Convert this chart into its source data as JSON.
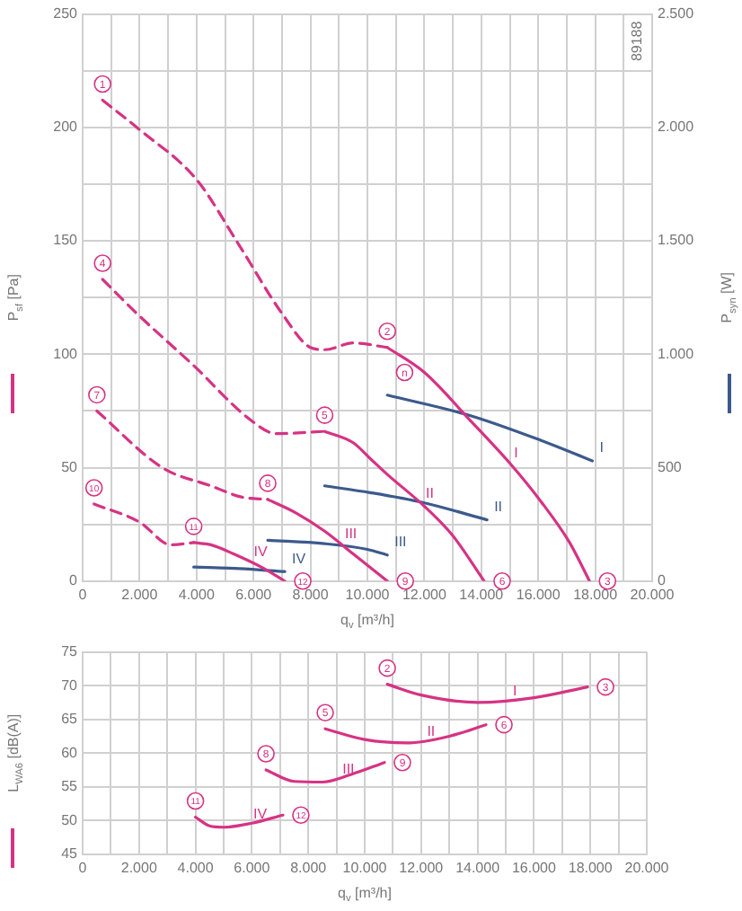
{
  "chart_data": [
    {
      "type": "line",
      "xlabel": "q$_{v}$ [m³/h]",
      "ylabel": "P$_{sf}$ [Pa]",
      "y2label": "P$_{syn}$ [W]",
      "xlim": [
        0,
        20000
      ],
      "ylim": [
        0,
        250
      ],
      "y2lim": [
        0,
        2500
      ],
      "xticks": [
        0,
        {
          "value": 1000,
          "label": null
        },
        {
          "value": 2000,
          "label": "2.000"
        },
        {
          "value": 3000,
          "label": null
        },
        {
          "value": 4000,
          "label": "4.000"
        },
        {
          "value": 5000,
          "label": null
        },
        {
          "value": 6000,
          "label": "6.000"
        },
        {
          "value": 7000,
          "label": null
        },
        {
          "value": 8000,
          "label": "8.000"
        },
        {
          "value": 9000,
          "label": null
        },
        {
          "value": 10000,
          "label": "10.000"
        },
        {
          "value": 11000,
          "label": null
        },
        {
          "value": 12000,
          "label": "12.000"
        },
        {
          "value": 13000,
          "label": null
        },
        {
          "value": 14000,
          "label": "14.000"
        },
        {
          "value": 15000,
          "label": null
        },
        {
          "value": 16000,
          "label": "16.000"
        },
        {
          "value": 17000,
          "label": null
        },
        {
          "value": 18000,
          "label": "18.000"
        },
        {
          "value": 19000,
          "label": null
        },
        {
          "value": 20000,
          "label": "20.000"
        }
      ],
      "yticks": [
        0,
        {
          "value": 25,
          "label": null
        },
        50,
        {
          "value": 75,
          "label": null
        },
        100,
        {
          "value": 125,
          "label": null
        },
        150,
        {
          "value": 175,
          "label": null
        },
        200,
        {
          "value": 225,
          "label": null
        },
        250
      ],
      "y2ticks": [
        0,
        500,
        {
          "value": 1000,
          "label": "1.000"
        },
        {
          "value": 1500,
          "label": "1.500"
        },
        {
          "value": 2000,
          "label": "2.000"
        },
        {
          "value": 2500,
          "label": "2.500"
        }
      ],
      "grid": true,
      "marker": "none",
      "line_style": "solid",
      "series": [
        {
          "color": "#d63384",
          "line_style": "dashed",
          "x": [
            700,
            2000,
            4000,
            5500,
            7000,
            8000,
            8500,
            9500,
            10700
          ],
          "values": [
            212,
            199,
            177,
            148,
            118,
            103,
            102,
            105,
            103
          ]
        },
        {
          "color": "#d63384",
          "line_style": "dashed",
          "x": [
            700,
            1900,
            3900,
            5900,
            6800,
            8500
          ],
          "values": [
            133,
            118,
            95,
            71,
            65,
            66
          ]
        },
        {
          "color": "#d63384",
          "line_style": "dashed",
          "x": [
            500,
            2800,
            4500,
            5600,
            6500
          ],
          "values": [
            75,
            50,
            42,
            37,
            36
          ]
        },
        {
          "color": "#d63384",
          "line_style": "dashed",
          "x": [
            400,
            2000,
            3100,
            3900
          ],
          "values": [
            34,
            26,
            16,
            17
          ]
        },
        {
          "name": "I",
          "color": "#d63384",
          "x": [
            10700,
            12000,
            13600,
            15000,
            16100,
            17100,
            17800
          ],
          "values": [
            103,
            92,
            71,
            52,
            35,
            17,
            0
          ]
        },
        {
          "name": "II",
          "color": "#d63384",
          "x": [
            8500,
            9500,
            10100,
            10700,
            12000,
            13000,
            14100
          ],
          "values": [
            66,
            61,
            54,
            47,
            33,
            20,
            0
          ]
        },
        {
          "name": "III",
          "color": "#d63384",
          "x": [
            6500,
            7500,
            8500,
            9500,
            10700
          ],
          "values": [
            36,
            30,
            22,
            12,
            0
          ]
        },
        {
          "name": "IV",
          "color": "#d63384",
          "x": [
            3900,
            4500,
            5300,
            6300,
            7100
          ],
          "values": [
            17,
            16,
            12,
            6,
            0
          ]
        },
        {
          "name": "I",
          "color": "#3c5a8c",
          "axis": "y2",
          "x": [
            10700,
            13600,
            16100,
            17900
          ],
          "values": [
            820,
            730,
            620,
            530
          ]
        },
        {
          "name": "II",
          "color": "#3c5a8c",
          "axis": "y2",
          "x": [
            8500,
            10100,
            12000,
            14200
          ],
          "values": [
            420,
            390,
            345,
            270
          ]
        },
        {
          "name": "III",
          "color": "#3c5a8c",
          "axis": "y2",
          "x": [
            6500,
            8500,
            10000,
            10700
          ],
          "values": [
            180,
            165,
            140,
            115
          ]
        },
        {
          "name": "IV",
          "color": "#3c5a8c",
          "axis": "y2",
          "x": [
            3900,
            5500,
            7100
          ],
          "values": [
            62,
            55,
            42
          ]
        }
      ],
      "annotations": [
        "89188",
        {
          "text": "1",
          "x": 700,
          "y": 212
        },
        {
          "text": "2",
          "x": 10700,
          "y": 103
        },
        {
          "text": "3",
          "x": 17800,
          "y": 0
        },
        {
          "text": "4",
          "x": 700,
          "y": 133
        },
        {
          "text": "5",
          "x": 8500,
          "y": 66
        },
        {
          "text": "6",
          "x": 14100,
          "y": 0
        },
        {
          "text": "7",
          "x": 500,
          "y": 75
        },
        {
          "text": "8",
          "x": 6500,
          "y": 36
        },
        {
          "text": "9",
          "x": 10700,
          "y": 0
        },
        {
          "text": "10",
          "x": 400,
          "y": 34
        },
        {
          "text": "11",
          "x": 3900,
          "y": 17
        },
        {
          "text": "12",
          "x": 7100,
          "y": 0
        },
        {
          "text": "n",
          "x": 12000,
          "y": 92
        }
      ]
    },
    {
      "type": "line",
      "xlabel": "q$_{v}$ [m³/h]",
      "ylabel": "L$_{WA6}$ [dB(A)]",
      "xlim": [
        0,
        20000
      ],
      "ylim": [
        45,
        75
      ],
      "xticks": [
        0,
        {
          "value": 1000,
          "label": null
        },
        {
          "value": 2000,
          "label": "2.000"
        },
        {
          "value": 3000,
          "label": null
        },
        {
          "value": 4000,
          "label": "4.000"
        },
        {
          "value": 5000,
          "label": null
        },
        {
          "value": 6000,
          "label": "6.000"
        },
        {
          "value": 7000,
          "label": null
        },
        {
          "value": 8000,
          "label": "8.000"
        },
        {
          "value": 9000,
          "label": null
        },
        {
          "value": 10000,
          "label": "10.000"
        },
        {
          "value": 11000,
          "label": null
        },
        {
          "value": 12000,
          "label": "12.000"
        },
        {
          "value": 13000,
          "label": null
        },
        {
          "value": 14000,
          "label": "14.000"
        },
        {
          "value": 15000,
          "label": null
        },
        {
          "value": 16000,
          "label": "16.000"
        },
        {
          "value": 17000,
          "label": null
        },
        {
          "value": 18000,
          "label": "18.000"
        },
        {
          "value": 19000,
          "label": null
        },
        {
          "value": 20000,
          "label": "20.000"
        }
      ],
      "yticks": [
        45,
        50,
        55,
        60,
        65,
        70,
        75
      ],
      "grid": true,
      "marker": "none",
      "line_style": "solid",
      "series": [
        {
          "name": "I",
          "color": "#d63384",
          "x": [
            10800,
            12000,
            14000,
            16000,
            17900
          ],
          "values": [
            70.2,
            68.6,
            67.5,
            68.2,
            69.8
          ]
        },
        {
          "name": "II",
          "color": "#d63384",
          "x": [
            8600,
            10000,
            11500,
            13000,
            14300
          ],
          "values": [
            63.6,
            62,
            61.5,
            62.5,
            64.2
          ]
        },
        {
          "name": "III",
          "color": "#d63384",
          "x": [
            6500,
            7500,
            8500,
            9500,
            10700
          ],
          "values": [
            57.5,
            55.8,
            55.7,
            56.8,
            58.6
          ]
        },
        {
          "name": "IV",
          "color": "#d63384",
          "x": [
            4000,
            4500,
            5000,
            6000,
            7100
          ],
          "values": [
            50.5,
            49.2,
            49,
            49.6,
            50.8
          ]
        }
      ],
      "annotations": [
        {
          "text": "2",
          "x": 10800,
          "y": 70.2
        },
        {
          "text": "3",
          "x": 17900,
          "y": 69.8
        },
        {
          "text": "5",
          "x": 8600,
          "y": 63.6
        },
        {
          "text": "6",
          "x": 14300,
          "y": 64.2
        },
        {
          "text": "8",
          "x": 6500,
          "y": 57.5
        },
        {
          "text": "9",
          "x": 10700,
          "y": 58.6
        },
        {
          "text": "11",
          "x": 4000,
          "y": 50.5
        },
        {
          "text": "12",
          "x": 7100,
          "y": 50.8
        }
      ]
    }
  ]
}
